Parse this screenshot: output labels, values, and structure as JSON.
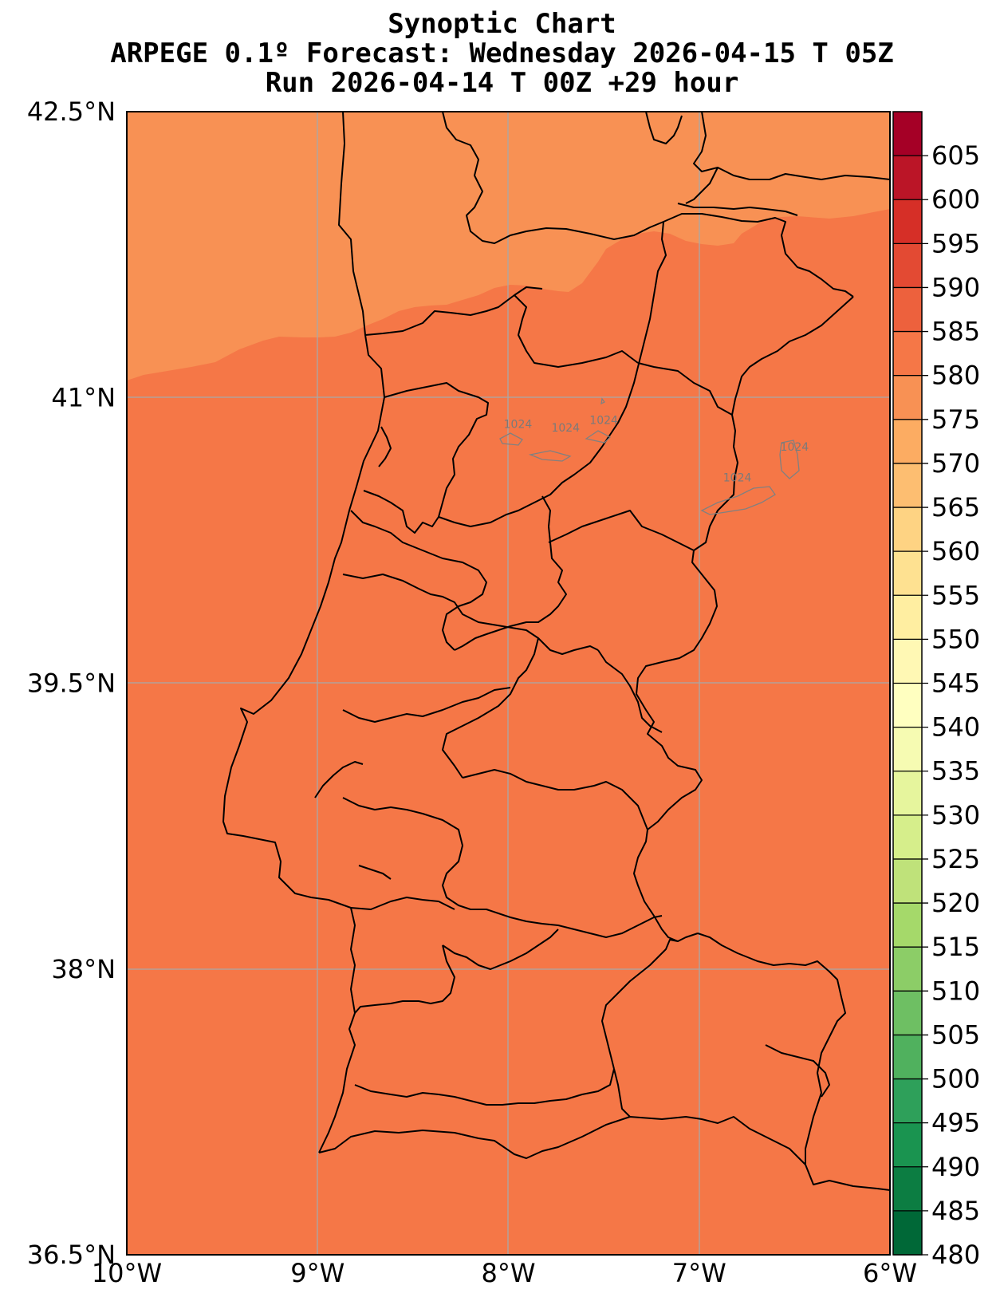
{
  "title": {
    "line1": "Synoptic Chart",
    "line2": "ARPEGE 0.1º Forecast: Wednesday 2026-04-15 T 05Z",
    "line3": "Run 2026-04-14 T 00Z +29 hour"
  },
  "map": {
    "lon_range": [
      -10,
      -6
    ],
    "lat_range": [
      36.5,
      42.5
    ],
    "lat_ticks": [
      {
        "value": 42.5,
        "label": "42.5°N"
      },
      {
        "value": 41,
        "label": "41°N"
      },
      {
        "value": 39.5,
        "label": "39.5°N"
      },
      {
        "value": 38,
        "label": "38°N"
      },
      {
        "value": 36.5,
        "label": "36.5°N"
      }
    ],
    "lon_ticks": [
      {
        "value": -10,
        "label": "10°W"
      },
      {
        "value": -9,
        "label": "9°W"
      },
      {
        "value": -8,
        "label": "8°W"
      },
      {
        "value": -7,
        "label": "7°W"
      },
      {
        "value": -6,
        "label": "6°W"
      }
    ],
    "gridlines": true,
    "fill_colors": {
      "band_570_575": "#f89154",
      "band_575_580": "#f57747"
    },
    "isobar_labels": [
      {
        "text": "1024",
        "lon": -7.95,
        "lat": 40.84
      },
      {
        "text": "1024",
        "lon": -7.7,
        "lat": 40.82
      },
      {
        "text": "1024",
        "lon": -7.5,
        "lat": 40.86
      },
      {
        "text": "1024",
        "lon": -6.5,
        "lat": 40.72
      },
      {
        "text": "1024",
        "lon": -6.8,
        "lat": 40.56
      }
    ]
  },
  "colorbar": {
    "labels": [
      605,
      600,
      595,
      590,
      585,
      580,
      575,
      570,
      565,
      560,
      555,
      550,
      545,
      540,
      535,
      530,
      525,
      520,
      515,
      510,
      505,
      500,
      495,
      490,
      485,
      480
    ],
    "colors": [
      "#a50026",
      "#bb1527",
      "#d62f27",
      "#e34a33",
      "#ed613d",
      "#f57747",
      "#f89154",
      "#fcac62",
      "#fdbe71",
      "#fed383",
      "#fee191",
      "#ffeea1",
      "#fff8b4",
      "#ffffc0",
      "#f6fbb2",
      "#e6f59d",
      "#d6ee8b",
      "#bfe27a",
      "#a5d96a",
      "#8ccd67",
      "#6ebf63",
      "#50b15e",
      "#2ea05a",
      "#1a9450",
      "#0c7d42",
      "#006837"
    ]
  }
}
